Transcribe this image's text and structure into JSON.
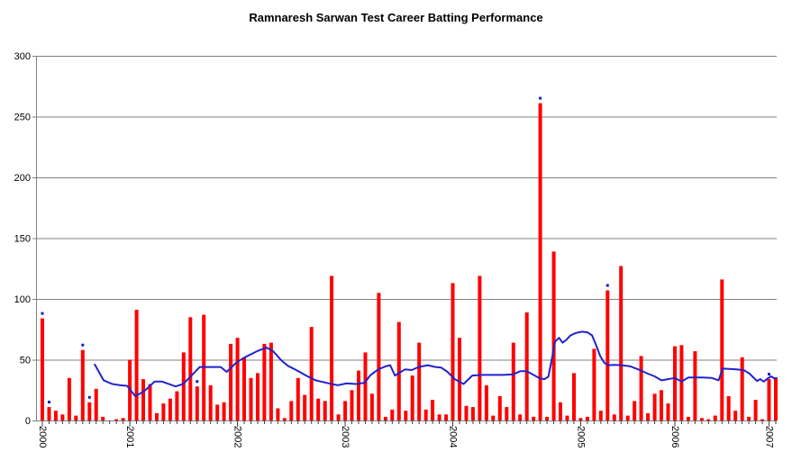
{
  "chart_data": {
    "type": "bar",
    "title": "Ramnaresh Sarwan Test Career Batting Performance",
    "xlabel": "",
    "ylabel": "",
    "y_axis": {
      "min": 0,
      "max": 300,
      "ticks": [
        0,
        50,
        100,
        150,
        200,
        250,
        300
      ],
      "gridlines": true
    },
    "legend": "none",
    "series_info": {
      "bars": "runs scored per Test innings",
      "dots": "not-out innings marker",
      "line": "running batting average"
    },
    "innings_values": [
      84,
      11,
      8,
      5,
      35,
      4,
      58,
      15,
      26,
      3,
      0,
      1,
      2,
      50,
      91,
      34,
      30,
      6,
      14,
      18,
      24,
      56,
      85,
      28,
      87,
      29,
      13,
      15,
      63,
      68,
      52,
      35,
      39,
      63,
      64,
      10,
      2,
      16,
      35,
      21,
      77,
      18,
      16,
      119,
      5,
      16,
      25,
      41,
      56,
      22,
      105,
      3,
      9,
      81,
      8,
      37,
      64,
      9,
      17,
      5,
      5,
      113,
      68,
      12,
      11,
      119,
      29,
      4,
      20,
      11,
      64,
      5,
      89,
      3,
      261,
      3,
      139,
      15,
      4,
      39,
      2,
      3,
      59,
      8,
      107,
      5,
      127,
      4,
      16,
      53,
      6,
      22,
      25,
      14,
      61,
      62,
      3,
      57,
      2,
      1,
      4,
      116,
      20,
      8,
      52,
      3,
      17,
      1,
      34,
      35
    ],
    "not_out_indices": [
      1,
      2,
      7,
      8,
      24,
      75,
      85,
      109
    ],
    "year_ticks": [
      {
        "label": "2000",
        "index": 1
      },
      {
        "label": "2001",
        "index": 14
      },
      {
        "label": "2002",
        "index": 30
      },
      {
        "label": "2003",
        "index": 46
      },
      {
        "label": "2004",
        "index": 62
      },
      {
        "label": "2005",
        "index": 81
      },
      {
        "label": "2006",
        "index": 95
      },
      {
        "label": "2007",
        "index": 109
      }
    ],
    "average_line_points": [
      [
        8.8,
        46
      ],
      [
        10.1,
        33
      ],
      [
        11.4,
        30
      ],
      [
        12.6,
        29
      ],
      [
        13.6,
        28.5
      ],
      [
        14.8,
        20
      ],
      [
        16.1,
        24
      ],
      [
        17.7,
        32
      ],
      [
        18.8,
        32
      ],
      [
        20.8,
        28
      ],
      [
        21.9,
        30
      ],
      [
        23,
        36
      ],
      [
        24.4,
        44
      ],
      [
        25.5,
        44
      ],
      [
        27.5,
        44
      ],
      [
        28.4,
        40
      ],
      [
        29.9,
        48
      ],
      [
        31.1,
        52
      ],
      [
        32.9,
        57
      ],
      [
        34.3,
        60
      ],
      [
        35.3,
        57
      ],
      [
        36.6,
        49
      ],
      [
        37.5,
        45
      ],
      [
        38.9,
        41
      ],
      [
        40.2,
        37
      ],
      [
        41.6,
        33
      ],
      [
        43.6,
        30.5
      ],
      [
        44.9,
        29
      ],
      [
        46.2,
        30.5
      ],
      [
        47.6,
        30
      ],
      [
        48.9,
        31
      ],
      [
        49.7,
        37
      ],
      [
        50.9,
        42
      ],
      [
        52,
        44.5
      ],
      [
        52.7,
        45.5
      ],
      [
        53.4,
        37
      ],
      [
        54.3,
        40
      ],
      [
        54.9,
        42
      ],
      [
        55.9,
        41.5
      ],
      [
        56.9,
        44
      ],
      [
        58.3,
        45.5
      ],
      [
        59.4,
        44
      ],
      [
        60.3,
        43.5
      ],
      [
        61.2,
        40
      ],
      [
        62.3,
        34
      ],
      [
        63.6,
        30
      ],
      [
        64.9,
        37
      ],
      [
        66.3,
        37.5
      ],
      [
        68,
        37.5
      ],
      [
        69.5,
        37.5
      ],
      [
        71,
        38
      ],
      [
        72,
        40.5
      ],
      [
        73,
        40.5
      ],
      [
        74,
        37.5
      ],
      [
        74.8,
        35
      ],
      [
        75.6,
        34
      ],
      [
        76.2,
        36
      ],
      [
        76.7,
        50
      ],
      [
        77.2,
        65
      ],
      [
        77.8,
        68
      ],
      [
        78.3,
        64
      ],
      [
        78.8,
        66
      ],
      [
        79.5,
        70
      ],
      [
        80.3,
        72
      ],
      [
        81.2,
        73
      ],
      [
        82,
        72.5
      ],
      [
        82.7,
        70
      ],
      [
        83.3,
        62
      ],
      [
        83.9,
        53
      ],
      [
        84.5,
        47.5
      ],
      [
        85.1,
        45.5
      ],
      [
        86,
        45.7
      ],
      [
        87.1,
        45.5
      ],
      [
        88.4,
        44.5
      ],
      [
        90,
        41
      ],
      [
        91,
        38.5
      ],
      [
        92,
        36.3
      ],
      [
        93,
        33
      ],
      [
        94,
        34
      ],
      [
        95,
        35
      ],
      [
        96,
        32
      ],
      [
        97,
        35.3
      ],
      [
        99,
        35.4
      ],
      [
        100.5,
        35
      ],
      [
        101.5,
        33
      ],
      [
        102.1,
        42.7
      ],
      [
        103.1,
        42.4
      ],
      [
        104.2,
        42
      ],
      [
        105.3,
        41.3
      ],
      [
        106.1,
        38.5
      ],
      [
        107.2,
        32.5
      ],
      [
        107.7,
        34
      ],
      [
        108.2,
        32
      ],
      [
        108.8,
        34.5
      ],
      [
        109.3,
        36.3
      ],
      [
        109.8,
        34.5
      ],
      [
        110.1,
        35
      ]
    ],
    "colors": {
      "bar": "#ff0000",
      "average_line": "#2222cc",
      "not_out_dot": "#1a1acc",
      "gridline": "#808080",
      "axis": "#808080",
      "tick": "#404040",
      "text": "#000000",
      "background": "#ffffff"
    }
  }
}
